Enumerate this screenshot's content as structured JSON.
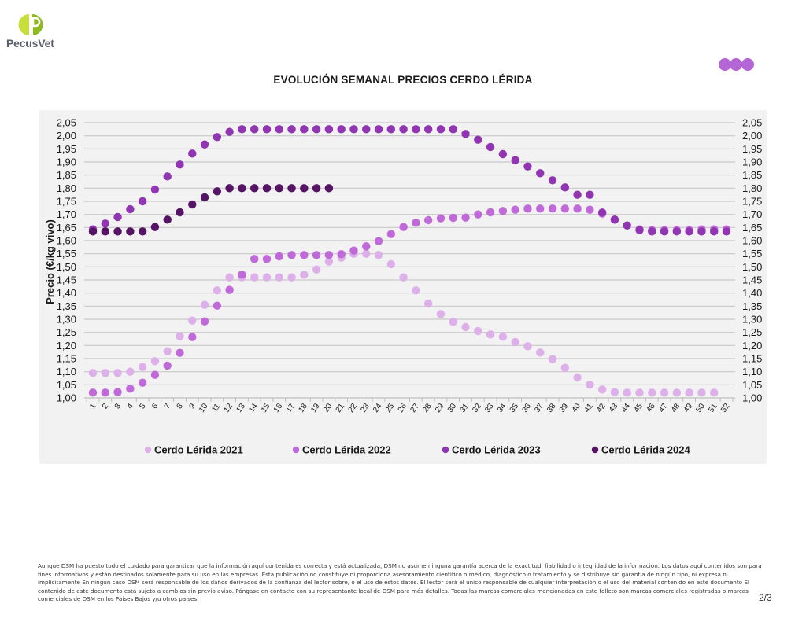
{
  "brand": {
    "logo_text": "PecusVet",
    "logo_letter": "P",
    "logo_colors": {
      "light": "#c8de3c",
      "dark": "#8dbb1e"
    },
    "decor_dots_color": "#b566d6"
  },
  "footer": {
    "disclaimer": "Aunque DSM ha puesto todo el cuidado para garantizar que la información aquí contenida es correcta y está actualizada, DSM no asume ninguna garantía acerca de la exactitud, fiabilidad o integridad de la información. Los datos aquí contenidos son para fines informativos y están destinados solamente para su uso en las empresas. Esta publicación no constituye ni proporciona asesoramiento científico o médico, diagnóstico o tratamiento y se distribuye sin garantía de ningún tipo, ni expresa ni implícitamente En ningún caso DSM será responsable de los daños derivados de la confianza del lector sobre, o el uso de estos datos. El lector será el único responsable de cualquier interpretación o el uso del material contenido en este documento El contenido de este documento está sujeto a cambios sin previo aviso. Póngase en contacto con su representante local de DSM para más detalles. Todas las marcas comerciales mencionadas en este folleto son marcas comerciales registradas o marcas comerciales de DSM en los Países Bajos y/u otros países.",
    "page_number": "2/3"
  },
  "chart_data": {
    "type": "scatter",
    "title": "EVOLUCIÓN SEMANAL PRECIOS CERDO LÉRIDA",
    "xlabel": "",
    "ylabel": "Precio (€/kg vivo)",
    "ylim": [
      1.0,
      2.05
    ],
    "y_ticks": [
      "1,00",
      "1,05",
      "1,10",
      "1,15",
      "1,20",
      "1,25",
      "1,30",
      "1,35",
      "1,40",
      "1,45",
      "1,50",
      "1,55",
      "1,60",
      "1,65",
      "1,70",
      "1,75",
      "1,80",
      "1,85",
      "1,90",
      "1,95",
      "2,00",
      "2,05"
    ],
    "secondary_y_axis": true,
    "grid": true,
    "legend_position": "bottom",
    "x": [
      1,
      2,
      3,
      4,
      5,
      6,
      7,
      8,
      9,
      10,
      11,
      12,
      13,
      14,
      15,
      16,
      17,
      18,
      19,
      20,
      21,
      22,
      23,
      24,
      25,
      26,
      27,
      28,
      29,
      30,
      31,
      32,
      33,
      34,
      35,
      36,
      37,
      38,
      39,
      40,
      41,
      42,
      43,
      44,
      45,
      46,
      47,
      48,
      49,
      50,
      51,
      52
    ],
    "series": [
      {
        "name": "Cerdo Lérida 2021",
        "color": "#ddb0ea",
        "values": [
          1.095,
          1.095,
          1.095,
          1.1,
          1.118,
          1.14,
          1.178,
          1.235,
          1.295,
          1.355,
          1.41,
          1.46,
          1.46,
          1.46,
          1.46,
          1.46,
          1.46,
          1.47,
          1.49,
          1.52,
          1.535,
          1.55,
          1.55,
          1.545,
          1.51,
          1.46,
          1.41,
          1.36,
          1.32,
          1.29,
          1.27,
          1.255,
          1.242,
          1.233,
          1.213,
          1.197,
          1.173,
          1.148,
          1.115,
          1.078,
          1.05,
          1.032,
          1.022,
          1.02,
          1.02,
          1.02,
          1.02,
          1.02,
          1.02,
          1.02,
          1.02,
          null
        ]
      },
      {
        "name": "Cerdo Lérida 2022",
        "color": "#c06ad9",
        "values": [
          1.02,
          1.02,
          1.022,
          1.035,
          1.058,
          1.088,
          1.123,
          1.172,
          1.232,
          1.292,
          1.352,
          1.412,
          1.47,
          1.53,
          1.53,
          1.54,
          1.545,
          1.545,
          1.545,
          1.545,
          1.548,
          1.562,
          1.578,
          1.598,
          1.625,
          1.652,
          1.668,
          1.678,
          1.685,
          1.687,
          1.688,
          1.7,
          1.708,
          1.713,
          1.718,
          1.722,
          1.722,
          1.722,
          1.722,
          1.722,
          1.718,
          1.703,
          1.68,
          1.658,
          1.643,
          1.64,
          1.64,
          1.64,
          1.64,
          1.643,
          1.643,
          1.643
        ]
      },
      {
        "name": "Cerdo Lérida 2023",
        "color": "#9235b3",
        "values": [
          1.643,
          1.665,
          1.69,
          1.72,
          1.75,
          1.795,
          1.845,
          1.89,
          1.932,
          1.967,
          1.995,
          2.015,
          2.025,
          2.025,
          2.025,
          2.025,
          2.025,
          2.025,
          2.025,
          2.025,
          2.025,
          2.025,
          2.025,
          2.025,
          2.025,
          2.025,
          2.025,
          2.025,
          2.025,
          2.025,
          2.007,
          1.985,
          1.957,
          1.93,
          1.907,
          1.883,
          1.857,
          1.83,
          1.803,
          1.775,
          1.775,
          1.707,
          1.68,
          1.658,
          1.64,
          1.635,
          1.635,
          1.635,
          1.635,
          1.635,
          1.635,
          1.635
        ]
      },
      {
        "name": "Cerdo Lérida 2024",
        "color": "#561466",
        "values": [
          1.635,
          1.635,
          1.635,
          1.635,
          1.635,
          1.652,
          1.68,
          1.708,
          1.738,
          1.765,
          1.788,
          1.8,
          1.8,
          1.8,
          1.8,
          1.8,
          1.8,
          1.8,
          1.8,
          1.8
        ]
      }
    ]
  }
}
